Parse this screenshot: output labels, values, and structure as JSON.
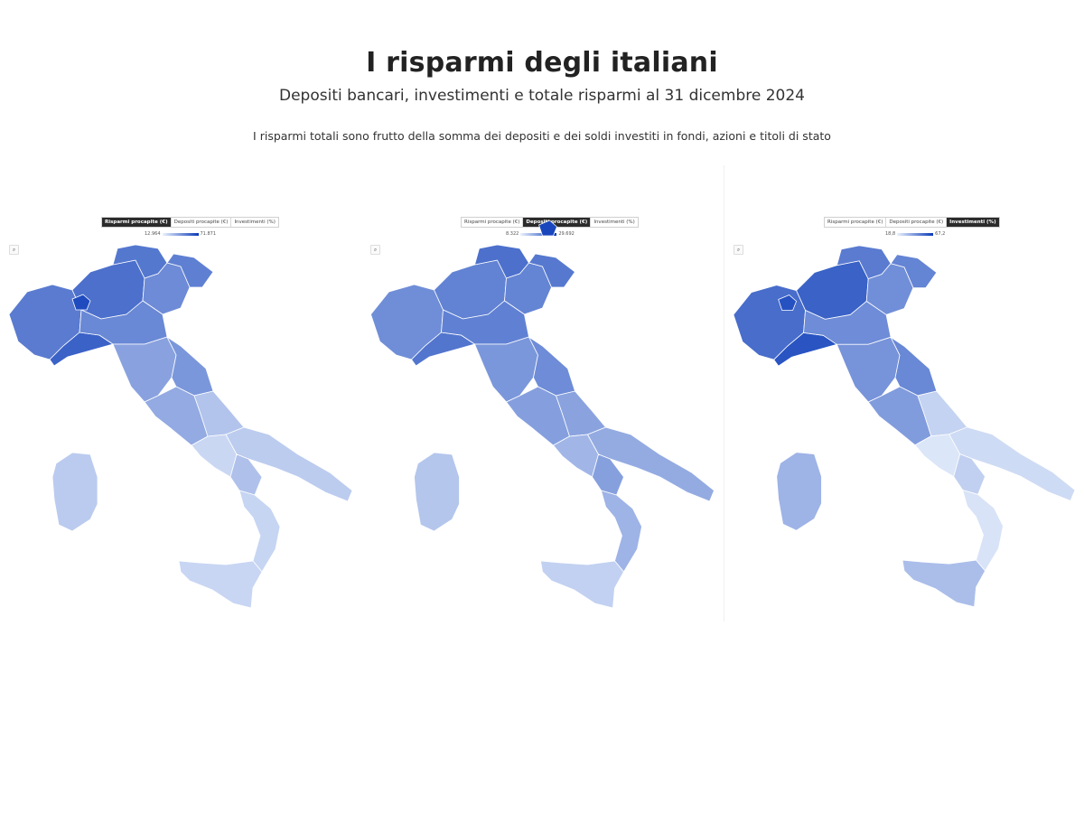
{
  "header": {
    "title": "I risparmi degli italiani",
    "subtitle": "Depositi bancari, investimenti e totale risparmi al 31 dicembre 2024",
    "note": "I risparmi totali sono frutto della somma dei depositi e dei soldi investiti in fondi, azioni e titoli di stato"
  },
  "panels": [
    {
      "tabs": [
        "Risparmi procapite (€)",
        "Depositi procapite (€)",
        "Investimenti (%)"
      ],
      "active_tab": 0,
      "legend": {
        "min": "12.964",
        "max": "71.871"
      },
      "zoom_icon": "search-icon"
    },
    {
      "tabs": [
        "Risparmi procapite (€)",
        "Depositi procapite (€)",
        "Investimenti (%)"
      ],
      "active_tab": 1,
      "legend": {
        "min": "8.322",
        "max": "29.692"
      },
      "zoom_icon": "search-icon"
    },
    {
      "tabs": [
        "Risparmi procapite (€)",
        "Depositi procapite (€)",
        "Investimenti (%)"
      ],
      "active_tab": 2,
      "legend": {
        "min": "18,8",
        "max": "67,2"
      },
      "zoom_icon": "search-icon"
    }
  ],
  "colors": {
    "scale_low": "#eaf2fd",
    "scale_high": "#0a3ab8",
    "active_tab_bg": "#2b2b2b"
  },
  "region_levels": [
    {
      "north_west": 0.72,
      "north_east": 0.62,
      "centre": 0.42,
      "south": 0.22,
      "islands": 0.15,
      "hot": 0.95
    },
    {
      "north_west": 0.62,
      "north_east": 0.66,
      "centre": 0.48,
      "south": 0.4,
      "islands": 0.18,
      "hot": 0.98
    },
    {
      "north_west": 0.8,
      "north_east": 0.6,
      "centre": 0.5,
      "south": 0.14,
      "islands": 0.28,
      "hot": 0.92
    }
  ]
}
